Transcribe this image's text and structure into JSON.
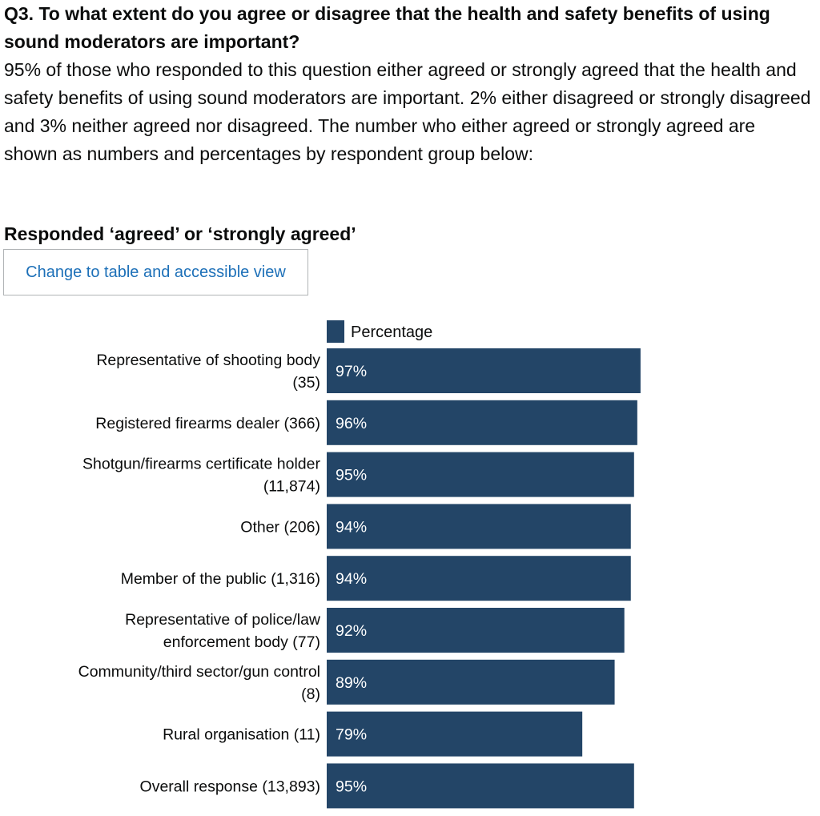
{
  "question": {
    "title": "Q3. To what extent do you agree or disagree that the health and safety benefits of using sound moderators are important?",
    "intro": "95% of those who responded to this question either agreed or strongly agreed that the health and safety benefits of using sound moderators are important. 2% either disagreed or strongly disagreed and 3% neither agreed nor disagreed.  The number who either agreed or strongly agreed are shown as numbers and percentages by respondent group below:"
  },
  "chart_section": {
    "title": "Responded ‘agreed’ or ‘strongly agreed’",
    "toggle_label": "Change to table and accessible view"
  },
  "colors": {
    "bar": "#234567",
    "link": "#1d70b8"
  },
  "chart_data": {
    "type": "bar",
    "orientation": "horizontal",
    "title": "Responded ‘agreed’ or ‘strongly agreed’",
    "legend": {
      "position": "top",
      "entries": [
        "Percentage"
      ]
    },
    "series": [
      {
        "name": "Percentage",
        "values": [
          97,
          96,
          95,
          94,
          94,
          92,
          89,
          79,
          95
        ]
      }
    ],
    "categories": [
      [
        "Representative of shooting body",
        "(35)"
      ],
      [
        "Registered firearms dealer (366)"
      ],
      [
        "Shotgun/firearms certificate holder",
        "(11,874)"
      ],
      [
        "Other (206)"
      ],
      [
        "Member of the public (1,316)"
      ],
      [
        "Representative of police/law",
        "enforcement body (77)"
      ],
      [
        "Community/third sector/gun control",
        "(8)"
      ],
      [
        "Rural organisation (11)"
      ],
      [
        "Overall response (13,893)"
      ]
    ],
    "value_labels": [
      "97%",
      "96%",
      "95%",
      "94%",
      "94%",
      "92%",
      "89%",
      "79%",
      "95%"
    ],
    "xlim": [
      0,
      100
    ],
    "grid": false
  }
}
